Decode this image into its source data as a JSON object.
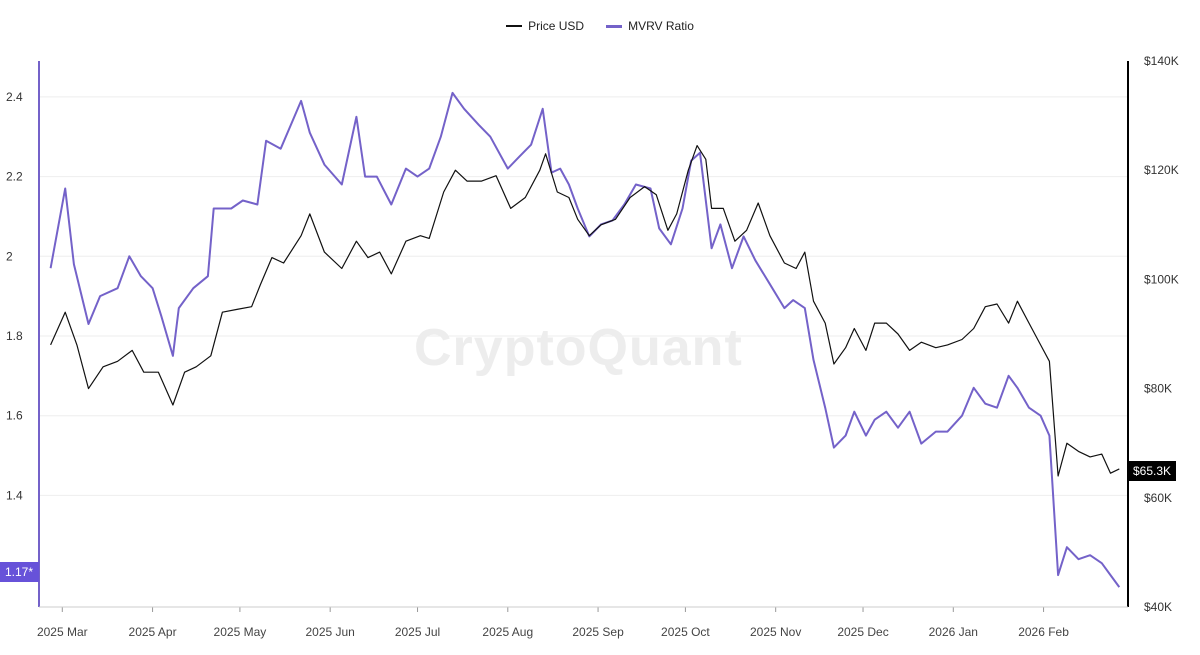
{
  "legend": {
    "price_label": "Price USD",
    "mvrv_label": "MVRV Ratio"
  },
  "watermark": "CryptoQuant",
  "current": {
    "price_tag": "$65.3K",
    "mvrv_tag": "1.17*"
  },
  "colors": {
    "price": "#111111",
    "mvrv": "#7462c9",
    "grid": "#eeeeee",
    "axis": "#000000"
  },
  "chart_data": {
    "type": "line",
    "title": "",
    "x_ticks": [
      "2025 Mar",
      "2025 Apr",
      "2025 May",
      "2025 Jun",
      "2025 Jul",
      "2025 Aug",
      "2025 Sep",
      "2025 Oct",
      "2025 Nov",
      "2025 Dec",
      "2026 Jan",
      "2026 Feb"
    ],
    "y_left": {
      "label": "",
      "ticks": [
        "1.4",
        "1.6",
        "1.8",
        "2",
        "2.2",
        "2.4"
      ],
      "range": [
        1.12,
        2.49
      ]
    },
    "y_right": {
      "label": "",
      "ticks": [
        "$40K",
        "$60K",
        "$80K",
        "$100K",
        "$120K",
        "$140K"
      ],
      "range": [
        40000,
        140000
      ]
    },
    "grid": true,
    "legend_position": "top-center",
    "series": [
      {
        "name": "MVRV Ratio",
        "axis": "left",
        "points": [
          [
            "2025-02-25",
            1.97
          ],
          [
            "2025-03-02",
            2.17
          ],
          [
            "2025-03-05",
            1.98
          ],
          [
            "2025-03-10",
            1.83
          ],
          [
            "2025-03-14",
            1.9
          ],
          [
            "2025-03-20",
            1.92
          ],
          [
            "2025-03-24",
            2.0
          ],
          [
            "2025-03-28",
            1.95
          ],
          [
            "2025-04-01",
            1.92
          ],
          [
            "2025-04-04",
            1.85
          ],
          [
            "2025-04-08",
            1.75
          ],
          [
            "2025-04-10",
            1.87
          ],
          [
            "2025-04-15",
            1.92
          ],
          [
            "2025-04-20",
            1.95
          ],
          [
            "2025-04-22",
            2.12
          ],
          [
            "2025-04-28",
            2.12
          ],
          [
            "2025-05-02",
            2.14
          ],
          [
            "2025-05-07",
            2.13
          ],
          [
            "2025-05-10",
            2.29
          ],
          [
            "2025-05-15",
            2.27
          ],
          [
            "2025-05-22",
            2.39
          ],
          [
            "2025-05-25",
            2.31
          ],
          [
            "2025-05-30",
            2.23
          ],
          [
            "2025-06-05",
            2.18
          ],
          [
            "2025-06-10",
            2.35
          ],
          [
            "2025-06-13",
            2.2
          ],
          [
            "2025-06-17",
            2.2
          ],
          [
            "2025-06-22",
            2.13
          ],
          [
            "2025-06-27",
            2.22
          ],
          [
            "2025-07-01",
            2.2
          ],
          [
            "2025-07-05",
            2.22
          ],
          [
            "2025-07-09",
            2.3
          ],
          [
            "2025-07-13",
            2.41
          ],
          [
            "2025-07-17",
            2.37
          ],
          [
            "2025-07-22",
            2.33
          ],
          [
            "2025-07-26",
            2.3
          ],
          [
            "2025-08-01",
            2.22
          ],
          [
            "2025-08-05",
            2.25
          ],
          [
            "2025-08-09",
            2.28
          ],
          [
            "2025-08-13",
            2.37
          ],
          [
            "2025-08-16",
            2.21
          ],
          [
            "2025-08-19",
            2.22
          ],
          [
            "2025-08-22",
            2.18
          ],
          [
            "2025-08-25",
            2.12
          ],
          [
            "2025-08-29",
            2.05
          ],
          [
            "2025-09-02",
            2.08
          ],
          [
            "2025-09-06",
            2.09
          ],
          [
            "2025-09-10",
            2.13
          ],
          [
            "2025-09-14",
            2.18
          ],
          [
            "2025-09-19",
            2.17
          ],
          [
            "2025-09-22",
            2.07
          ],
          [
            "2025-09-26",
            2.03
          ],
          [
            "2025-09-30",
            2.12
          ],
          [
            "2025-10-03",
            2.24
          ],
          [
            "2025-10-06",
            2.26
          ],
          [
            "2025-10-10",
            2.02
          ],
          [
            "2025-10-13",
            2.08
          ],
          [
            "2025-10-17",
            1.97
          ],
          [
            "2025-10-21",
            2.05
          ],
          [
            "2025-10-25",
            1.99
          ],
          [
            "2025-10-30",
            1.93
          ],
          [
            "2025-11-04",
            1.87
          ],
          [
            "2025-11-07",
            1.89
          ],
          [
            "2025-11-11",
            1.87
          ],
          [
            "2025-11-14",
            1.74
          ],
          [
            "2025-11-18",
            1.62
          ],
          [
            "2025-11-21",
            1.52
          ],
          [
            "2025-11-25",
            1.55
          ],
          [
            "2025-11-28",
            1.61
          ],
          [
            "2025-12-02",
            1.55
          ],
          [
            "2025-12-05",
            1.59
          ],
          [
            "2025-12-09",
            1.61
          ],
          [
            "2025-12-13",
            1.57
          ],
          [
            "2025-12-17",
            1.61
          ],
          [
            "2025-12-21",
            1.53
          ],
          [
            "2025-12-26",
            1.56
          ],
          [
            "2025-12-30",
            1.56
          ],
          [
            "2026-01-04",
            1.6
          ],
          [
            "2026-01-08",
            1.67
          ],
          [
            "2026-01-12",
            1.63
          ],
          [
            "2026-01-16",
            1.62
          ],
          [
            "2026-01-20",
            1.7
          ],
          [
            "2026-01-23",
            1.67
          ],
          [
            "2026-01-27",
            1.62
          ],
          [
            "2026-01-31",
            1.6
          ],
          [
            "2026-02-03",
            1.55
          ],
          [
            "2026-02-06",
            1.2
          ],
          [
            "2026-02-09",
            1.27
          ],
          [
            "2026-02-13",
            1.24
          ],
          [
            "2026-02-17",
            1.25
          ],
          [
            "2026-02-21",
            1.23
          ],
          [
            "2026-02-24",
            1.2
          ],
          [
            "2026-02-27",
            1.17
          ]
        ]
      },
      {
        "name": "Price USD",
        "axis": "right",
        "points": [
          [
            "2025-02-25",
            88000
          ],
          [
            "2025-03-02",
            94000
          ],
          [
            "2025-03-06",
            88000
          ],
          [
            "2025-03-10",
            80000
          ],
          [
            "2025-03-15",
            84000
          ],
          [
            "2025-03-20",
            85000
          ],
          [
            "2025-03-25",
            87000
          ],
          [
            "2025-03-29",
            83000
          ],
          [
            "2025-04-03",
            83000
          ],
          [
            "2025-04-08",
            77000
          ],
          [
            "2025-04-12",
            83000
          ],
          [
            "2025-04-16",
            84000
          ],
          [
            "2025-04-21",
            86000
          ],
          [
            "2025-04-25",
            94000
          ],
          [
            "2025-04-30",
            94500
          ],
          [
            "2025-05-05",
            95000
          ],
          [
            "2025-05-08",
            99000
          ],
          [
            "2025-05-12",
            104000
          ],
          [
            "2025-05-16",
            103000
          ],
          [
            "2025-05-22",
            108000
          ],
          [
            "2025-05-25",
            112000
          ],
          [
            "2025-05-30",
            105000
          ],
          [
            "2025-06-05",
            102000
          ],
          [
            "2025-06-10",
            107000
          ],
          [
            "2025-06-14",
            104000
          ],
          [
            "2025-06-18",
            105000
          ],
          [
            "2025-06-22",
            101000
          ],
          [
            "2025-06-27",
            107000
          ],
          [
            "2025-07-02",
            108000
          ],
          [
            "2025-07-05",
            107500
          ],
          [
            "2025-07-10",
            116000
          ],
          [
            "2025-07-14",
            120000
          ],
          [
            "2025-07-18",
            118000
          ],
          [
            "2025-07-23",
            118000
          ],
          [
            "2025-07-28",
            119000
          ],
          [
            "2025-08-02",
            113000
          ],
          [
            "2025-08-07",
            115000
          ],
          [
            "2025-08-12",
            120000
          ],
          [
            "2025-08-14",
            123000
          ],
          [
            "2025-08-18",
            116000
          ],
          [
            "2025-08-22",
            115000
          ],
          [
            "2025-08-25",
            111000
          ],
          [
            "2025-08-29",
            108000
          ],
          [
            "2025-09-02",
            110000
          ],
          [
            "2025-09-07",
            111000
          ],
          [
            "2025-09-12",
            115000
          ],
          [
            "2025-09-17",
            117000
          ],
          [
            "2025-09-21",
            115500
          ],
          [
            "2025-09-25",
            109000
          ],
          [
            "2025-09-28",
            112000
          ],
          [
            "2025-10-02",
            120000
          ],
          [
            "2025-10-05",
            124500
          ],
          [
            "2025-10-08",
            122000
          ],
          [
            "2025-10-10",
            113000
          ],
          [
            "2025-10-14",
            113000
          ],
          [
            "2025-10-18",
            107000
          ],
          [
            "2025-10-22",
            109000
          ],
          [
            "2025-10-26",
            114000
          ],
          [
            "2025-10-30",
            108000
          ],
          [
            "2025-11-04",
            103000
          ],
          [
            "2025-11-08",
            102000
          ],
          [
            "2025-11-11",
            105000
          ],
          [
            "2025-11-14",
            96000
          ],
          [
            "2025-11-18",
            92000
          ],
          [
            "2025-11-21",
            84500
          ],
          [
            "2025-11-25",
            87500
          ],
          [
            "2025-11-28",
            91000
          ],
          [
            "2025-12-02",
            87000
          ],
          [
            "2025-12-05",
            92000
          ],
          [
            "2025-12-09",
            92000
          ],
          [
            "2025-12-13",
            90000
          ],
          [
            "2025-12-17",
            87000
          ],
          [
            "2025-12-21",
            88500
          ],
          [
            "2025-12-26",
            87500
          ],
          [
            "2025-12-30",
            88000
          ],
          [
            "2026-01-04",
            89000
          ],
          [
            "2026-01-08",
            91000
          ],
          [
            "2026-01-12",
            95000
          ],
          [
            "2026-01-16",
            95500
          ],
          [
            "2026-01-20",
            92000
          ],
          [
            "2026-01-23",
            96000
          ],
          [
            "2026-01-27",
            92000
          ],
          [
            "2026-01-31",
            88000
          ],
          [
            "2026-02-03",
            85000
          ],
          [
            "2026-02-06",
            64000
          ],
          [
            "2026-02-09",
            70000
          ],
          [
            "2026-02-13",
            68500
          ],
          [
            "2026-02-17",
            67500
          ],
          [
            "2026-02-21",
            68000
          ],
          [
            "2026-02-24",
            64500
          ],
          [
            "2026-02-27",
            65300
          ]
        ]
      }
    ]
  }
}
